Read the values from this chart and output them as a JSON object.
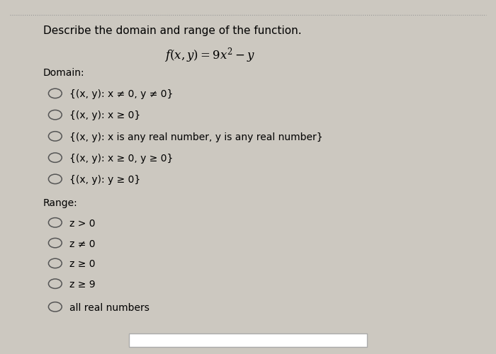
{
  "title": "Describe the domain and range of the function.",
  "function_label": "f(x, y) = 9x² − y",
  "domain_label": "Domain:",
  "domain_options": [
    "{(x, y): x ≠ 0, y ≠ 0}",
    "{(x, y): x ≥ 0}",
    "{(x, y): x is any real number, y is any real number}",
    "{(x, y): x ≥ 0, y ≥ 0}",
    "{(x, y): y ≥ 0}"
  ],
  "range_label": "Range:",
  "range_options": [
    "z > 0",
    "z ≠ 0",
    "z ≥ 0",
    "z ≥ 9",
    "all real numbers"
  ],
  "bg_color": "#ccc8c0",
  "panel_color": "#ede8e2",
  "title_color": "#000000",
  "text_color": "#000000",
  "circle_color": "#555555",
  "dotted_border_color": "#999999",
  "font_size_title": 11,
  "font_size_text": 10,
  "font_size_function": 12
}
